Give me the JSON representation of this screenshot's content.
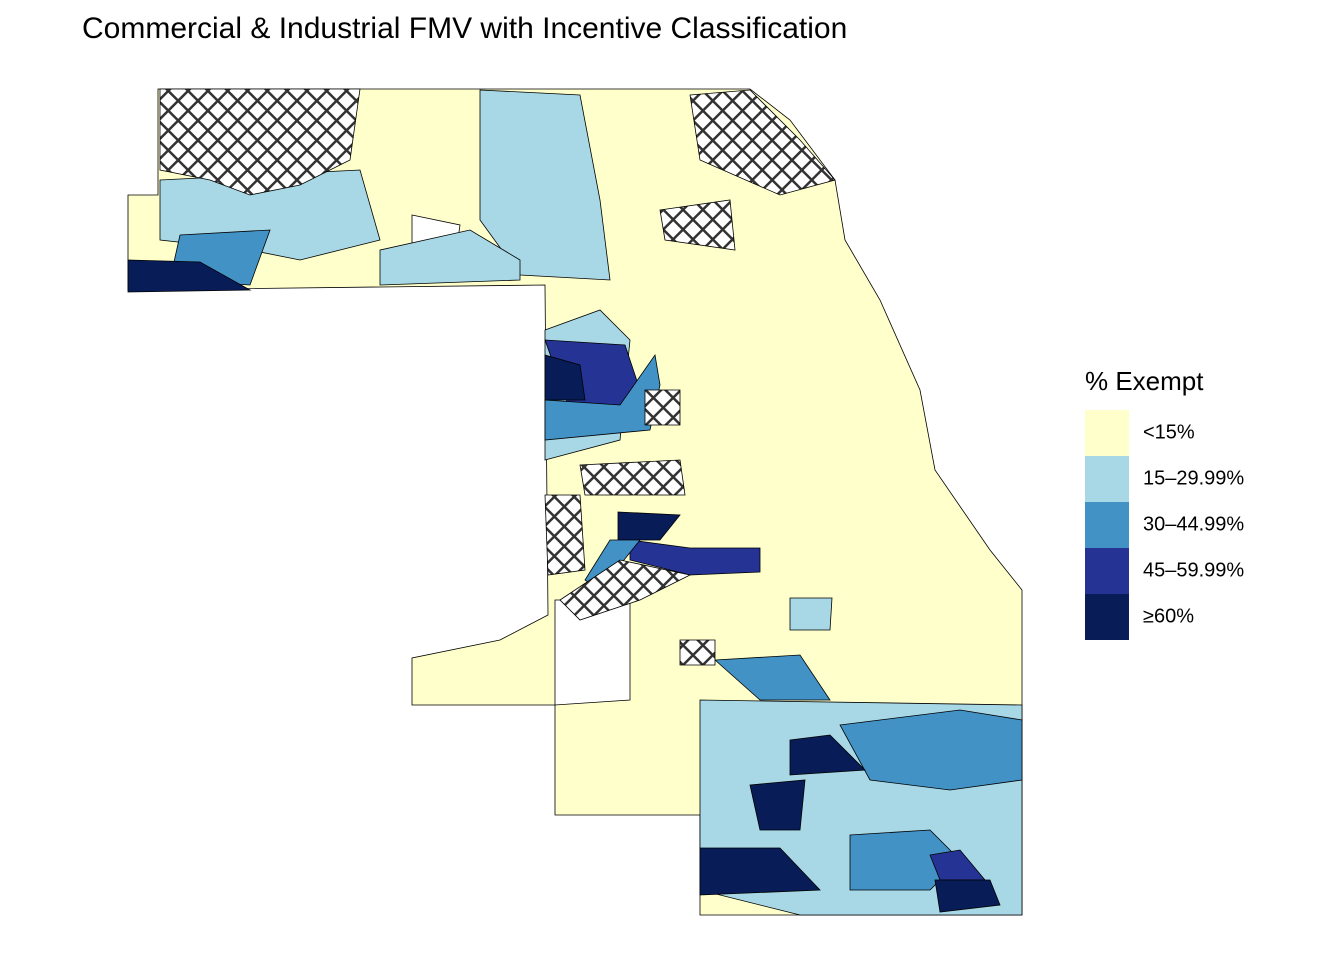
{
  "title": "Commercial & Industrial FMV with Incentive Classification",
  "legend": {
    "title": "% Exempt",
    "items": [
      {
        "label": "<15%",
        "color": "#ffffcc"
      },
      {
        "label": "15–29.99%",
        "color": "#a8d8e6"
      },
      {
        "label": "30–44.99%",
        "color": "#4292c6"
      },
      {
        "label": "45–59.99%",
        "color": "#253494"
      },
      {
        "label": "≥60%",
        "color": "#081d58"
      }
    ]
  }
}
